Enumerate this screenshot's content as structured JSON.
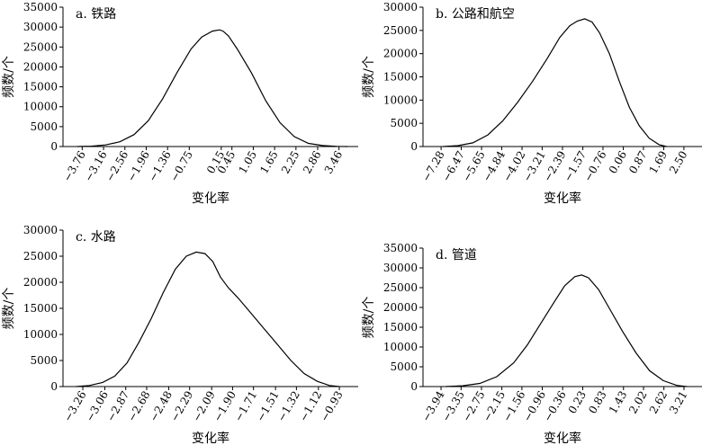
{
  "chart_data": [
    {
      "type": "line",
      "title": "a. 铁路",
      "xlabel": "变化率",
      "ylabel": "频数/个",
      "ylim": [
        0,
        35000
      ],
      "yticks": [
        "0",
        "5000",
        "10000",
        "15000",
        "20000",
        "25000",
        "30000",
        "35000"
      ],
      "categories": [
        "−3.76",
        "−3.16",
        "−2.56",
        "−1.96",
        "−1.36",
        "−0.75",
        "0.15",
        "0.45",
        "1.05",
        "1.65",
        "2.25",
        "2.86",
        "3.46"
      ],
      "series": [
        {
          "x": [
            -3.9,
            -3.5,
            -3.1,
            -2.7,
            -2.3,
            -1.9,
            -1.5,
            -1.1,
            -0.7,
            -0.4,
            -0.1,
            0.1,
            0.2,
            0.35,
            0.6,
            1.0,
            1.4,
            1.8,
            2.2,
            2.6,
            3.0,
            3.4,
            3.7
          ],
          "values": [
            0,
            100,
            400,
            1200,
            3000,
            6500,
            12000,
            18500,
            24500,
            27500,
            29000,
            29300,
            29000,
            27800,
            24500,
            18500,
            11500,
            6000,
            2500,
            800,
            250,
            50,
            0
          ]
        }
      ]
    },
    {
      "type": "line",
      "title": "b. 公路和航空",
      "xlabel": "变化率",
      "ylabel": "频数/个",
      "ylim": [
        0,
        30000
      ],
      "yticks": [
        "0",
        "5000",
        "10000",
        "15000",
        "20000",
        "25000",
        "30000"
      ],
      "categories": [
        "−7.28",
        "−6.47",
        "−5.65",
        "−4.84",
        "−4.02",
        "−3.21",
        "−2.39",
        "−1.57",
        "−0.76",
        "0.06",
        "0.87",
        "1.69",
        "2.50"
      ],
      "series": [
        {
          "x": [
            -7.2,
            -6.6,
            -6.0,
            -5.4,
            -4.8,
            -4.2,
            -3.6,
            -3.0,
            -2.5,
            -2.1,
            -1.8,
            -1.5,
            -1.2,
            -0.9,
            -0.5,
            -0.1,
            0.3,
            0.7,
            1.1,
            1.5,
            1.8
          ],
          "values": [
            0,
            200,
            800,
            2500,
            5500,
            9500,
            14000,
            19000,
            23500,
            26000,
            27000,
            27500,
            26800,
            24500,
            20000,
            14000,
            8500,
            4500,
            1800,
            400,
            0
          ]
        }
      ]
    },
    {
      "type": "line",
      "title": "c. 水路",
      "xlabel": "变化率",
      "ylabel": "频数/个",
      "ylim": [
        0,
        30000
      ],
      "yticks": [
        "0",
        "5000",
        "10000",
        "15000",
        "20000",
        "25000",
        "30000"
      ],
      "categories": [
        "−3.26",
        "−3.06",
        "−2.87",
        "−2.68",
        "−2.48",
        "−2.29",
        "−2.09",
        "−1.90",
        "−1.71",
        "−1.51",
        "−1.32",
        "−1.12",
        "−0.93"
      ],
      "series": [
        {
          "x": [
            -3.32,
            -3.2,
            -3.08,
            -2.97,
            -2.86,
            -2.75,
            -2.64,
            -2.53,
            -2.42,
            -2.32,
            -2.23,
            -2.15,
            -2.08,
            -2.01,
            -1.94,
            -1.85,
            -1.73,
            -1.61,
            -1.49,
            -1.37,
            -1.25,
            -1.13,
            -1.02,
            -0.93
          ],
          "values": [
            0,
            200,
            800,
            2000,
            4500,
            8500,
            13000,
            18000,
            22500,
            25000,
            25800,
            25500,
            24000,
            21000,
            19000,
            17000,
            14000,
            11000,
            8000,
            5000,
            2500,
            1000,
            200,
            0
          ]
        }
      ]
    },
    {
      "type": "line",
      "title": "d. 管道",
      "xlabel": "变化率",
      "ylabel": "频数/个",
      "ylim": [
        0,
        35000
      ],
      "yticks": [
        "0",
        "5000",
        "10000",
        "15000",
        "20000",
        "25000",
        "30000",
        "35000"
      ],
      "categories": [
        "−3.94",
        "−3.35",
        "−2.75",
        "−2.15",
        "−1.56",
        "−0.96",
        "−0.36",
        "0.23",
        "0.83",
        "1.43",
        "2.02",
        "2.62",
        "3.21"
      ],
      "series": [
        {
          "x": [
            -3.8,
            -3.3,
            -2.8,
            -2.3,
            -1.8,
            -1.4,
            -1.0,
            -0.6,
            -0.3,
            0.0,
            0.2,
            0.4,
            0.7,
            1.0,
            1.4,
            1.8,
            2.2,
            2.6,
            3.0,
            3.3
          ],
          "values": [
            0,
            200,
            800,
            2500,
            6000,
            10500,
            16000,
            21500,
            25500,
            27800,
            28200,
            27500,
            24500,
            20000,
            14000,
            8500,
            4000,
            1500,
            300,
            0
          ]
        }
      ]
    }
  ]
}
